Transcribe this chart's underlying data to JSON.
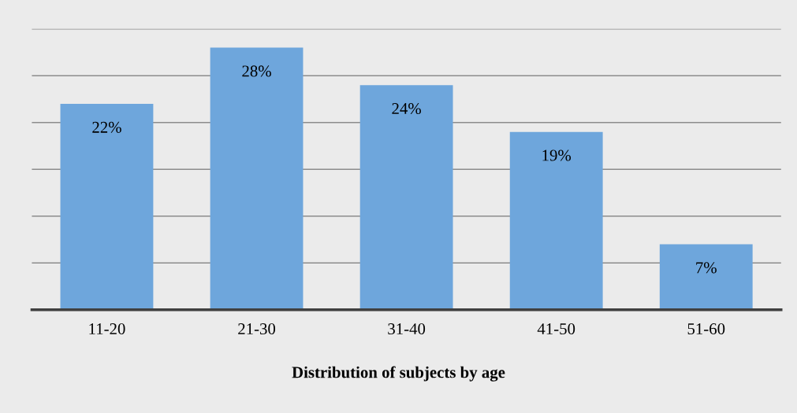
{
  "chart_data": {
    "type": "bar",
    "title": "Distribution of subjects by age",
    "categories": [
      "11-20",
      "21-30",
      "31-40",
      "41-50",
      "51-60"
    ],
    "values": [
      22,
      28,
      24,
      19,
      7
    ],
    "value_labels": [
      "22%",
      "28%",
      "24%",
      "19%",
      "7%"
    ],
    "color": "#6ea6dc",
    "ylim": [
      0,
      30
    ],
    "yticks": [
      {
        "value": 0,
        "label": null
      },
      {
        "value": 5,
        "label": null
      },
      {
        "value": 10,
        "label": null
      },
      {
        "value": 15,
        "label": null
      },
      {
        "value": 20,
        "label": null
      },
      {
        "value": 25,
        "label": null
      },
      {
        "value": 30,
        "label": null
      }
    ],
    "grid": "y",
    "tick_labels": "x"
  }
}
